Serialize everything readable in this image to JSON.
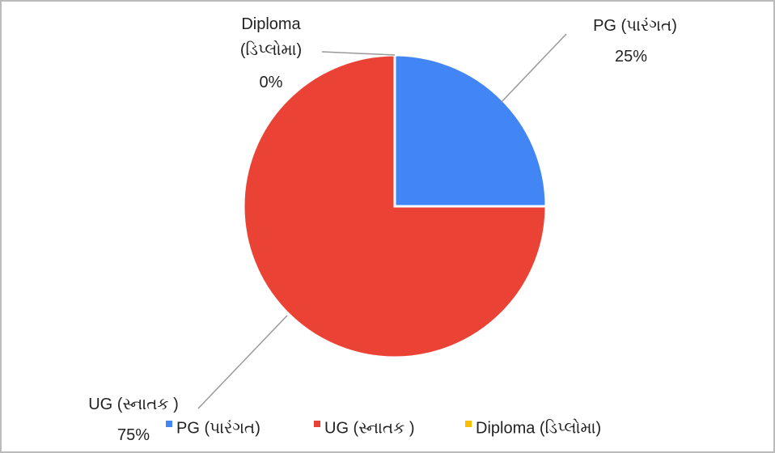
{
  "chart_data": {
    "type": "pie",
    "categories": [
      "PG (પારંગત)",
      "UG (સ્નાતક )",
      "Diploma (ડિપ્લોમા)"
    ],
    "values": [
      25,
      75,
      0
    ],
    "value_labels": [
      "25%",
      "75%",
      "0%"
    ],
    "colors": [
      "#4285f4",
      "#ea4335",
      "#fbbc04"
    ],
    "legend": "bottom"
  }
}
